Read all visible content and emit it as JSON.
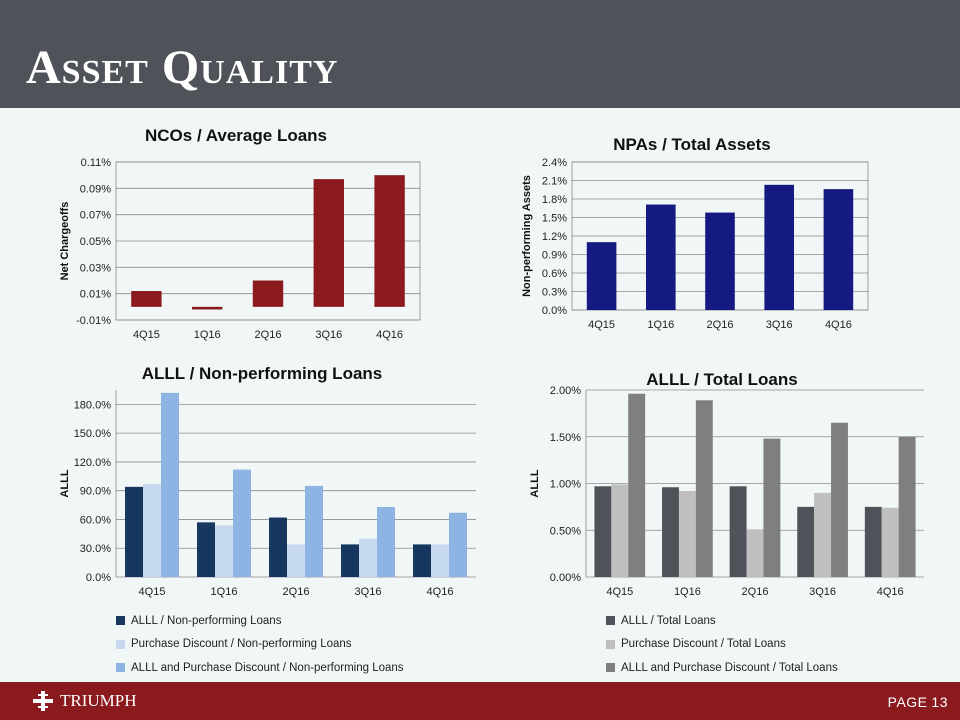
{
  "page": {
    "title": "Asset Quality",
    "footer": {
      "logo_text": "TRIUMPH",
      "page_label": "PAGE",
      "page_number": "13"
    }
  },
  "colors": {
    "header_bg": "#4f5258",
    "footer_bg": "#8b1a1f",
    "nco_bar": "#8b1a1f",
    "npa_bar": "#141a82",
    "alll_npl_series": [
      "#17375e",
      "#c6d9f1",
      "#8eb4e3"
    ],
    "alll_tl_series": [
      "#4f5258",
      "#bfbfbf",
      "#7f7f7f"
    ]
  },
  "chart_data": [
    {
      "type": "bar",
      "title": "NCOs / Average Loans",
      "xlabel": "",
      "ylabel": "Net Chargeoffs",
      "categories": [
        "4Q15",
        "1Q16",
        "2Q16",
        "3Q16",
        "4Q16"
      ],
      "values": [
        0.012,
        -0.002,
        0.02,
        0.097,
        0.1
      ],
      "ylim": [
        -0.01,
        0.11
      ],
      "ticks": [
        -0.01,
        0.01,
        0.03,
        0.05,
        0.07,
        0.09,
        0.11
      ],
      "tick_labels": [
        "-0.01%",
        "0.01%",
        "0.03%",
        "0.05%",
        "0.07%",
        "0.09%",
        "0.11%"
      ],
      "grid": true
    },
    {
      "type": "bar",
      "title": "NPAs / Total Assets",
      "xlabel": "",
      "ylabel": "Non-performing Assets",
      "categories": [
        "4Q15",
        "1Q16",
        "2Q16",
        "3Q16",
        "4Q16"
      ],
      "values": [
        1.1,
        1.71,
        1.58,
        2.03,
        1.96
      ],
      "ylim": [
        0,
        2.4
      ],
      "ticks": [
        0,
        0.3,
        0.6,
        0.9,
        1.2,
        1.5,
        1.8,
        2.1,
        2.4
      ],
      "tick_labels": [
        "0.0%",
        "0.3%",
        "0.6%",
        "0.9%",
        "1.2%",
        "1.5%",
        "1.8%",
        "2.1%",
        "2.4%"
      ],
      "grid": true
    },
    {
      "type": "bar",
      "title": "ALLL / Non-performing Loans",
      "xlabel": "",
      "ylabel": "ALLL",
      "categories": [
        "4Q15",
        "1Q16",
        "2Q16",
        "3Q16",
        "4Q16"
      ],
      "series": [
        {
          "name": "ALLL / Non-performing Loans",
          "values": [
            94,
            57,
            62,
            34,
            34
          ]
        },
        {
          "name": "Purchase Discount / Non-performing Loans",
          "values": [
            97,
            54,
            34,
            40,
            34
          ]
        },
        {
          "name": "ALLL and Purchase Discount / Non-performing Loans",
          "values": [
            192,
            112,
            95,
            73,
            67
          ]
        }
      ],
      "ylim": [
        0,
        195
      ],
      "ticks": [
        0,
        30,
        60,
        90,
        120,
        150,
        180
      ],
      "tick_labels": [
        "0.0%",
        "30.0%",
        "60.0%",
        "90.0%",
        "120.0%",
        "150.0%",
        "180.0%"
      ],
      "grid": true,
      "legend": "bottom"
    },
    {
      "type": "bar",
      "title": "ALLL / Total Loans",
      "xlabel": "",
      "ylabel": "ALLL",
      "categories": [
        "4Q15",
        "1Q16",
        "2Q16",
        "3Q16",
        "4Q16"
      ],
      "series": [
        {
          "name": "ALLL / Total Loans",
          "values": [
            0.97,
            0.96,
            0.97,
            0.75,
            0.75
          ]
        },
        {
          "name": "Purchase Discount / Total Loans",
          "values": [
            0.99,
            0.92,
            0.51,
            0.9,
            0.74
          ]
        },
        {
          "name": "ALLL and Purchase Discount / Total Loans",
          "values": [
            1.96,
            1.89,
            1.48,
            1.65,
            1.5
          ]
        }
      ],
      "ylim": [
        0,
        2.0
      ],
      "ticks": [
        0,
        0.5,
        1.0,
        1.5,
        2.0
      ],
      "tick_labels": [
        "0.00%",
        "0.50%",
        "1.00%",
        "1.50%",
        "2.00%"
      ],
      "grid": true,
      "legend": "bottom"
    }
  ]
}
